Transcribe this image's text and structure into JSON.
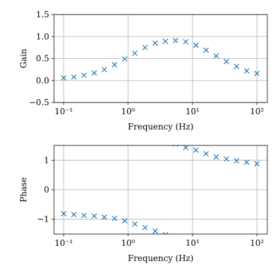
{
  "chart_data": [
    {
      "type": "scatter",
      "ylabel": "Gain",
      "xlabel": "Frequency (Hz)",
      "xscale": "log",
      "grid": true,
      "color": "#1f77b4",
      "marker": "x",
      "x": [
        0.1,
        0.144,
        0.207,
        0.298,
        0.428,
        0.616,
        0.886,
        1.274,
        1.833,
        2.637,
        3.793,
        5.456,
        7.848,
        11.29,
        16.24,
        23.36,
        33.6,
        48.33,
        69.52,
        100
      ],
      "values": [
        0.06,
        0.08,
        0.12,
        0.17,
        0.25,
        0.36,
        0.49,
        0.62,
        0.75,
        0.85,
        0.89,
        0.91,
        0.88,
        0.8,
        0.69,
        0.56,
        0.43,
        0.32,
        0.22,
        0.16
      ],
      "xlim": [
        0.0708,
        145
      ],
      "xticks": [
        {
          "value": 0.1,
          "label": "10⁻¹"
        },
        {
          "value": 1,
          "label": "10⁰"
        },
        {
          "value": 10,
          "label": "10¹"
        },
        {
          "value": 100,
          "label": "10²"
        }
      ],
      "ylim": [
        -0.5,
        1.5
      ],
      "yticks": [
        {
          "value": -0.5,
          "label": "−0.5"
        },
        {
          "value": 0,
          "label": "0.0"
        },
        {
          "value": 0.5,
          "label": "0.5"
        },
        {
          "value": 1,
          "label": "1.0"
        },
        {
          "value": 1.5,
          "label": "1.5"
        }
      ]
    },
    {
      "type": "scatter",
      "ylabel": "Phase",
      "xlabel": "Frequency (Hz)",
      "xscale": "log",
      "grid": true,
      "color": "#1f77b4",
      "marker": "x",
      "x": [
        0.1,
        0.144,
        0.207,
        0.298,
        0.428,
        0.616,
        0.886,
        1.274,
        1.833,
        2.637,
        3.793,
        5.456,
        7.848,
        11.29,
        16.24,
        23.36,
        33.6,
        48.33,
        69.52,
        100
      ],
      "values": [
        -0.81,
        -0.84,
        -0.87,
        -0.89,
        -0.93,
        -0.97,
        -1.05,
        -1.16,
        -1.28,
        -1.4,
        -1.52,
        1.55,
        1.43,
        1.34,
        1.22,
        1.11,
        1.04,
        0.98,
        0.93,
        0.88
      ],
      "xlim": [
        0.0708,
        145
      ],
      "xticks": [
        {
          "value": 0.1,
          "label": "10⁻¹"
        },
        {
          "value": 1,
          "label": "10⁰"
        },
        {
          "value": 10,
          "label": "10¹"
        },
        {
          "value": 100,
          "label": "10²"
        }
      ],
      "ylim": [
        -1.5,
        1.5
      ],
      "yticks": [
        {
          "value": -1,
          "label": "−1"
        },
        0,
        1
      ]
    }
  ]
}
